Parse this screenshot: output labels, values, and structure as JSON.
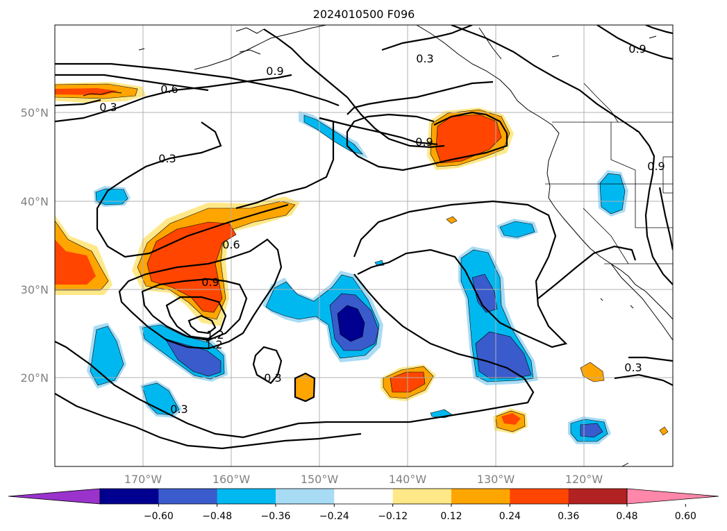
{
  "title": "2024010500 F096",
  "lat_labels": [
    "50°N",
    "40°N",
    "30°N",
    "20°N"
  ],
  "lon_labels": [
    "170°W",
    "160°W",
    "150°W",
    "140°W",
    "130°W",
    "120°W"
  ],
  "contour_labels": [
    "0.9",
    "0.3",
    "0.6",
    "0.3",
    "0.9",
    "0.9",
    "0.3",
    "0.9",
    "0.6",
    "0.9",
    "1.2",
    "1.2",
    "0.3",
    "0.3",
    "0.3"
  ],
  "colorbar": {
    "colors": [
      "#9933cc",
      "#000090",
      "#3a5bcc",
      "#00b8f0",
      "#a8dcf5",
      "#ffffff",
      "#ffe888",
      "#ffa500",
      "#ff4500",
      "#b22222",
      "#ff88aa"
    ],
    "ticks": [
      "−0.60",
      "−0.48",
      "−0.36",
      "−0.24",
      "−0.12",
      "0.12",
      "0.24",
      "0.36",
      "0.48",
      "0.60"
    ]
  }
}
